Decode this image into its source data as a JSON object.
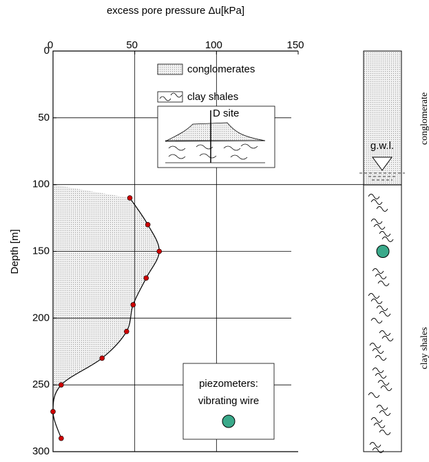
{
  "chart_data": {
    "type": "line",
    "title": "excess pore pressure Δu[kPa]",
    "y_label": "Depth [m]",
    "x": [
      47,
      58,
      65,
      57,
      49,
      45,
      30,
      5,
      0,
      5
    ],
    "values": [
      110,
      130,
      150,
      170,
      190,
      210,
      230,
      250,
      270,
      290
    ],
    "line_color": "#000000",
    "marker_color": "#cc0000",
    "xlim": [
      0,
      150
    ],
    "xticks": [
      0,
      50,
      100,
      150
    ],
    "ylim": [
      0,
      300
    ],
    "yticks": [
      0,
      50,
      100,
      150,
      200,
      250,
      300
    ],
    "y_reversed": true,
    "grid": true,
    "legend": [
      {
        "label": "conglomerates"
      },
      {
        "label": "clay shales"
      }
    ],
    "inset_label": "D site",
    "piezometer_label": [
      "piezometers:",
      "vibrating wire"
    ],
    "column": {
      "gwl_label": "g.w.l.",
      "layers": [
        "conglomerate",
        "clay shales"
      ],
      "piezometer_depth": 150
    }
  }
}
